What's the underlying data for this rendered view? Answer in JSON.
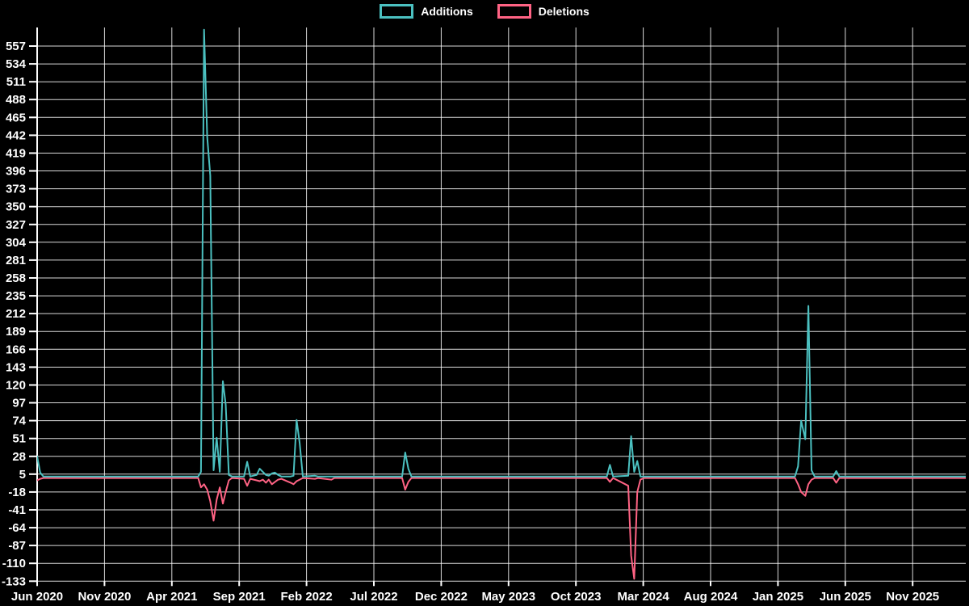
{
  "app": {
    "background": "#000000",
    "text_color": "#ffffff"
  },
  "legend": {
    "items": [
      {
        "label": "Additions",
        "color": "#4bc0c0"
      },
      {
        "label": "Deletions",
        "color": "#ff6384"
      }
    ]
  },
  "chart_data": {
    "type": "line",
    "title": "",
    "legend": [
      "Additions",
      "Deletions"
    ],
    "legend_position": "top-center",
    "grid": true,
    "background": "#000000",
    "grid_color": "rgba(255,255,255,0.85)",
    "axis_color": "#ffffff",
    "xlabel": "",
    "ylabel": "",
    "y_axis": {
      "min": -133,
      "max": 557,
      "tick_step": 23,
      "ticks": [
        557,
        534,
        511,
        488,
        465,
        442,
        419,
        396,
        373,
        350,
        327,
        304,
        281,
        258,
        235,
        212,
        189,
        166,
        143,
        120,
        97,
        74,
        51,
        28,
        5,
        -18,
        -41,
        -64,
        -87,
        -110,
        -133
      ]
    },
    "x_axis": {
      "unit": "weeks",
      "tick_labels": [
        "Jun 2020",
        "Nov 2020",
        "Apr 2021",
        "Sep 2021",
        "Feb 2022",
        "Jul 2022",
        "Dec 2022",
        "May 2023",
        "Oct 2023",
        "Mar 2024",
        "Aug 2024",
        "Jan 2025",
        "Jun 2025",
        "Nov 2025"
      ],
      "tick_interval_months": 5
    },
    "series": [
      {
        "name": "Additions",
        "color": "#4bc0c0",
        "points": [
          [
            "2020-06-01",
            28
          ],
          [
            "2020-06-08",
            7
          ],
          [
            "2020-06-15",
            2
          ],
          [
            "2021-05-30",
            2
          ],
          [
            "2021-06-06",
            8
          ],
          [
            "2021-06-13",
            578
          ],
          [
            "2021-06-20",
            440
          ],
          [
            "2021-06-27",
            390
          ],
          [
            "2021-07-04",
            10
          ],
          [
            "2021-07-11",
            52
          ],
          [
            "2021-07-18",
            8
          ],
          [
            "2021-07-25",
            125
          ],
          [
            "2021-08-01",
            95
          ],
          [
            "2021-08-08",
            4
          ],
          [
            "2021-08-15",
            2
          ],
          [
            "2021-09-12",
            2
          ],
          [
            "2021-09-19",
            21
          ],
          [
            "2021-09-26",
            2
          ],
          [
            "2021-10-10",
            4
          ],
          [
            "2021-10-17",
            12
          ],
          [
            "2021-10-24",
            8
          ],
          [
            "2021-10-31",
            4
          ],
          [
            "2021-11-07",
            3
          ],
          [
            "2021-11-14",
            6
          ],
          [
            "2021-11-21",
            7
          ],
          [
            "2021-11-28",
            4
          ],
          [
            "2021-12-05",
            2
          ],
          [
            "2021-12-26",
            2
          ],
          [
            "2022-01-02",
            3
          ],
          [
            "2022-01-09",
            75
          ],
          [
            "2022-01-16",
            45
          ],
          [
            "2022-01-23",
            2
          ],
          [
            "2022-02-20",
            3
          ],
          [
            "2022-02-27",
            2
          ],
          [
            "2022-03-27",
            2
          ],
          [
            "2022-04-03",
            2
          ],
          [
            "2022-09-04",
            2
          ],
          [
            "2022-09-11",
            33
          ],
          [
            "2022-09-18",
            12
          ],
          [
            "2022-09-25",
            2
          ],
          [
            "2023-12-10",
            2
          ],
          [
            "2023-12-17",
            17
          ],
          [
            "2023-12-24",
            2
          ],
          [
            "2024-01-28",
            3
          ],
          [
            "2024-02-04",
            54
          ],
          [
            "2024-02-11",
            8
          ],
          [
            "2024-02-18",
            22
          ],
          [
            "2024-02-25",
            2
          ],
          [
            "2024-03-03",
            2
          ],
          [
            "2025-02-09",
            2
          ],
          [
            "2025-02-16",
            15
          ],
          [
            "2025-02-23",
            74
          ],
          [
            "2025-03-02",
            50
          ],
          [
            "2025-03-09",
            222
          ],
          [
            "2025-03-16",
            10
          ],
          [
            "2025-03-23",
            2
          ],
          [
            "2025-05-04",
            2
          ],
          [
            "2025-05-11",
            9
          ],
          [
            "2025-05-18",
            2
          ],
          [
            "2026-03-01",
            2
          ]
        ]
      },
      {
        "name": "Deletions",
        "color": "#ff6384",
        "points": [
          [
            "2020-06-01",
            -3
          ],
          [
            "2020-06-08",
            -1
          ],
          [
            "2020-06-15",
            0
          ],
          [
            "2021-05-30",
            0
          ],
          [
            "2021-06-06",
            -12
          ],
          [
            "2021-06-13",
            -8
          ],
          [
            "2021-06-20",
            -15
          ],
          [
            "2021-06-27",
            -30
          ],
          [
            "2021-07-04",
            -55
          ],
          [
            "2021-07-11",
            -28
          ],
          [
            "2021-07-18",
            -12
          ],
          [
            "2021-07-25",
            -33
          ],
          [
            "2021-08-01",
            -18
          ],
          [
            "2021-08-08",
            -3
          ],
          [
            "2021-08-15",
            0
          ],
          [
            "2021-09-12",
            -1
          ],
          [
            "2021-09-19",
            -10
          ],
          [
            "2021-09-26",
            -1
          ],
          [
            "2021-10-10",
            -3
          ],
          [
            "2021-10-17",
            -4
          ],
          [
            "2021-10-24",
            -2
          ],
          [
            "2021-10-31",
            -6
          ],
          [
            "2021-11-07",
            -2
          ],
          [
            "2021-11-14",
            -8
          ],
          [
            "2021-11-21",
            -5
          ],
          [
            "2021-11-28",
            -2
          ],
          [
            "2021-12-05",
            -1
          ],
          [
            "2021-12-26",
            -6
          ],
          [
            "2022-01-02",
            -8
          ],
          [
            "2022-01-09",
            -4
          ],
          [
            "2022-01-16",
            -2
          ],
          [
            "2022-01-23",
            0
          ],
          [
            "2022-02-20",
            -1
          ],
          [
            "2022-02-27",
            0
          ],
          [
            "2022-03-27",
            -2
          ],
          [
            "2022-04-03",
            0
          ],
          [
            "2022-09-04",
            0
          ],
          [
            "2022-09-11",
            -15
          ],
          [
            "2022-09-18",
            -5
          ],
          [
            "2022-09-25",
            0
          ],
          [
            "2023-12-10",
            0
          ],
          [
            "2023-12-17",
            -5
          ],
          [
            "2023-12-24",
            0
          ],
          [
            "2024-01-28",
            -10
          ],
          [
            "2024-02-04",
            -100
          ],
          [
            "2024-02-11",
            -130
          ],
          [
            "2024-02-18",
            -18
          ],
          [
            "2024-02-25",
            -2
          ],
          [
            "2024-03-03",
            0
          ],
          [
            "2025-02-09",
            0
          ],
          [
            "2025-02-16",
            -8
          ],
          [
            "2025-02-23",
            -18
          ],
          [
            "2025-03-02",
            -23
          ],
          [
            "2025-03-09",
            -8
          ],
          [
            "2025-03-16",
            -2
          ],
          [
            "2025-03-23",
            0
          ],
          [
            "2025-05-04",
            0
          ],
          [
            "2025-05-11",
            -6
          ],
          [
            "2025-05-18",
            0
          ],
          [
            "2026-03-01",
            0
          ]
        ]
      }
    ]
  }
}
